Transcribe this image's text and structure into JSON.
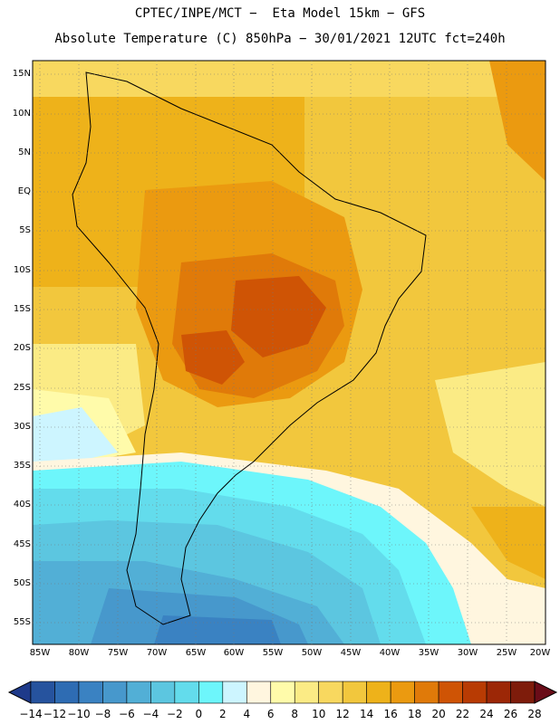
{
  "header": {
    "line1": "CPTEC/INPE/MCT −  Eta Model 15km − GFS",
    "line2": "Absolute Temperature (C) 850hPa − 30/01/2021 12UTC fct=240h"
  },
  "map": {
    "lat_labels": [
      "15N",
      "10N",
      "5N",
      "EQ",
      "5S",
      "10S",
      "15S",
      "20S",
      "25S",
      "30S",
      "35S",
      "40S",
      "45S",
      "50S",
      "55S"
    ],
    "lon_labels": [
      "85W",
      "80W",
      "75W",
      "70W",
      "65W",
      "60W",
      "55W",
      "50W",
      "45W",
      "40W",
      "35W",
      "30W",
      "25W",
      "20W"
    ],
    "field": "Absolute Temperature (C) at 850hPa"
  },
  "colorbar": {
    "labels": [
      "−14",
      "−12",
      "−10",
      "−8",
      "−6",
      "−4",
      "−2",
      "0",
      "2",
      "4",
      "6",
      "8",
      "10",
      "12",
      "14",
      "16",
      "18",
      "20",
      "22",
      "24",
      "26",
      "28"
    ],
    "colors": [
      "#1e3a8a",
      "#26539e",
      "#2e6cb3",
      "#3a82c2",
      "#4798cc",
      "#52afd6",
      "#5cc6e0",
      "#63dcec",
      "#6df6fb",
      "#cdf5ff",
      "#fff6df",
      "#fffbaa",
      "#fbeb85",
      "#f8d85f",
      "#f2c73d",
      "#eeb21a",
      "#eb9a10",
      "#e07a09",
      "#cf5405",
      "#b83b03",
      "#9c2706",
      "#7e1c0b",
      "#6a0c18"
    ]
  }
}
